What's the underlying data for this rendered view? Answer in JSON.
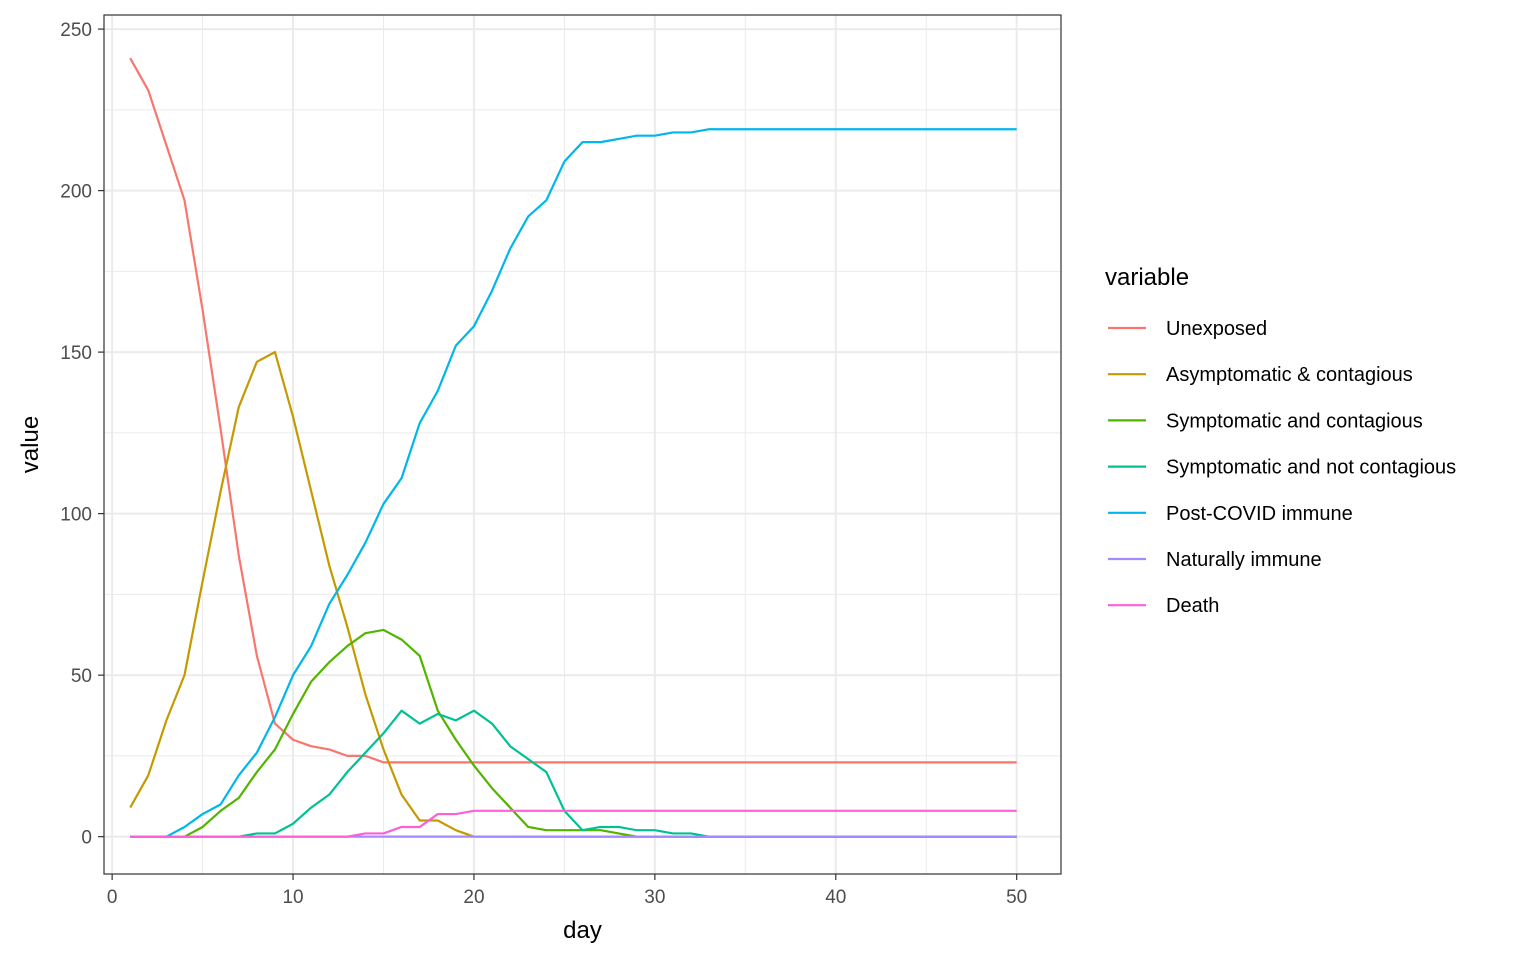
{
  "chart_data": {
    "type": "line",
    "title": "",
    "xlabel": "day",
    "ylabel": "value",
    "xlim": [
      -0.45,
      52.45
    ],
    "ylim": [
      -11.56,
      254.36
    ],
    "x_ticks": [
      0,
      10,
      20,
      30,
      40,
      50
    ],
    "y_ticks": [
      0,
      50,
      100,
      150,
      200,
      250
    ],
    "x_tick_labels": [
      "0",
      "10",
      "20",
      "30",
      "40",
      "50"
    ],
    "y_tick_labels": [
      "0",
      "50",
      "100",
      "150",
      "200",
      "250"
    ],
    "grid": true,
    "legend": {
      "title": "variable",
      "placement": "right"
    },
    "x": [
      1,
      2,
      3,
      4,
      5,
      6,
      7,
      8,
      9,
      10,
      11,
      12,
      13,
      14,
      15,
      16,
      17,
      18,
      19,
      20,
      21,
      22,
      23,
      24,
      25,
      26,
      27,
      28,
      29,
      30,
      31,
      32,
      33,
      34,
      35,
      36,
      37,
      38,
      39,
      40,
      41,
      42,
      43,
      44,
      45,
      46,
      47,
      48,
      49,
      50
    ],
    "series": [
      {
        "name": "Unexposed",
        "color": "#F8766D",
        "values": [
          241,
          231,
          214,
          197,
          163,
          126,
          87,
          56,
          35,
          30,
          28,
          27,
          25,
          25,
          23,
          23,
          23,
          23,
          23,
          23,
          23,
          23,
          23,
          23,
          23,
          23,
          23,
          23,
          23,
          23,
          23,
          23,
          23,
          23,
          23,
          23,
          23,
          23,
          23,
          23,
          23,
          23,
          23,
          23,
          23,
          23,
          23,
          23,
          23,
          23
        ]
      },
      {
        "name": "Asymptomatic & contagious",
        "color": "#C49A00",
        "values": [
          9,
          19,
          36,
          50,
          79,
          107,
          133,
          147,
          150,
          130,
          107,
          84,
          65,
          44,
          27,
          13,
          5,
          5,
          2,
          0,
          0,
          0,
          0,
          0,
          0,
          0,
          0,
          0,
          0,
          0,
          0,
          0,
          0,
          0,
          0,
          0,
          0,
          0,
          0,
          0,
          0,
          0,
          0,
          0,
          0,
          0,
          0,
          0,
          0,
          0
        ]
      },
      {
        "name": "Symptomatic and contagious",
        "color": "#53B400",
        "values": [
          0,
          0,
          0,
          0,
          3,
          8,
          12,
          20,
          27,
          38,
          48,
          54,
          59,
          63,
          64,
          61,
          56,
          39,
          30,
          22,
          15,
          9,
          3,
          2,
          2,
          2,
          2,
          1,
          0,
          0,
          0,
          0,
          0,
          0,
          0,
          0,
          0,
          0,
          0,
          0,
          0,
          0,
          0,
          0,
          0,
          0,
          0,
          0,
          0,
          0
        ]
      },
      {
        "name": "Symptomatic and not contagious",
        "color": "#00C094",
        "values": [
          0,
          0,
          0,
          0,
          0,
          0,
          0,
          1,
          1,
          4,
          9,
          13,
          20,
          26,
          32,
          39,
          35,
          38,
          36,
          39,
          35,
          28,
          24,
          20,
          8,
          2,
          3,
          3,
          2,
          2,
          1,
          1,
          0,
          0,
          0,
          0,
          0,
          0,
          0,
          0,
          0,
          0,
          0,
          0,
          0,
          0,
          0,
          0,
          0,
          0
        ]
      },
      {
        "name": "Post-COVID immune",
        "color": "#00B6EB",
        "values": [
          0,
          0,
          0,
          3,
          7,
          10,
          19,
          26,
          37,
          50,
          59,
          72,
          81,
          91,
          103,
          111,
          128,
          138,
          152,
          158,
          169,
          182,
          192,
          197,
          209,
          215,
          215,
          216,
          217,
          217,
          218,
          218,
          219,
          219,
          219,
          219,
          219,
          219,
          219,
          219,
          219,
          219,
          219,
          219,
          219,
          219,
          219,
          219,
          219,
          219
        ]
      },
      {
        "name": "Naturally immune",
        "color": "#A58AFF",
        "values": [
          0,
          0,
          0,
          0,
          0,
          0,
          0,
          0,
          0,
          0,
          0,
          0,
          0,
          0,
          0,
          0,
          0,
          0,
          0,
          0,
          0,
          0,
          0,
          0,
          0,
          0,
          0,
          0,
          0,
          0,
          0,
          0,
          0,
          0,
          0,
          0,
          0,
          0,
          0,
          0,
          0,
          0,
          0,
          0,
          0,
          0,
          0,
          0,
          0,
          0
        ]
      },
      {
        "name": "Death",
        "color": "#FB61D7",
        "values": [
          0,
          0,
          0,
          0,
          0,
          0,
          0,
          0,
          0,
          0,
          0,
          0,
          0,
          1,
          1,
          3,
          3,
          7,
          7,
          8,
          8,
          8,
          8,
          8,
          8,
          8,
          8,
          8,
          8,
          8,
          8,
          8,
          8,
          8,
          8,
          8,
          8,
          8,
          8,
          8,
          8,
          8,
          8,
          8,
          8,
          8,
          8,
          8,
          8,
          8
        ]
      }
    ]
  }
}
